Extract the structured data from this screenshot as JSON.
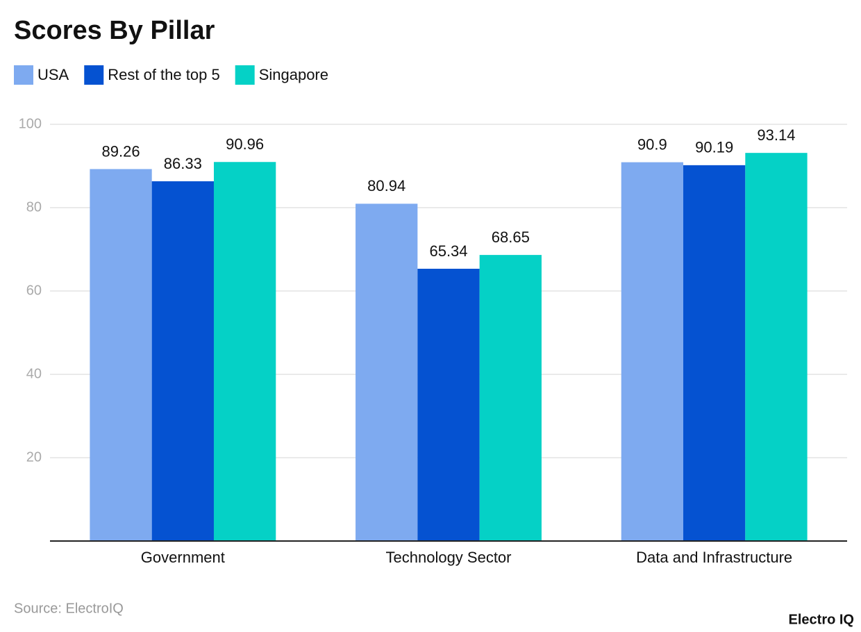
{
  "chart_data": {
    "type": "bar",
    "title": "Scores By Pillar",
    "categories": [
      "Government",
      "Technology Sector",
      "Data and Infrastructure"
    ],
    "series": [
      {
        "name": "USA",
        "color": "#7eaaf0",
        "values": [
          89.26,
          80.94,
          90.9
        ]
      },
      {
        "name": "Rest of the top 5",
        "color": "#0552d1",
        "values": [
          86.33,
          65.34,
          90.19
        ]
      },
      {
        "name": "Singapore",
        "color": "#05d1c6",
        "values": [
          90.96,
          68.65,
          93.14
        ]
      }
    ],
    "ylim": [
      0,
      100
    ],
    "yticks": [
      20,
      40,
      60,
      80,
      100
    ],
    "grid": true,
    "source": "Source: ElectroIQ",
    "brand": "Electro IQ"
  }
}
